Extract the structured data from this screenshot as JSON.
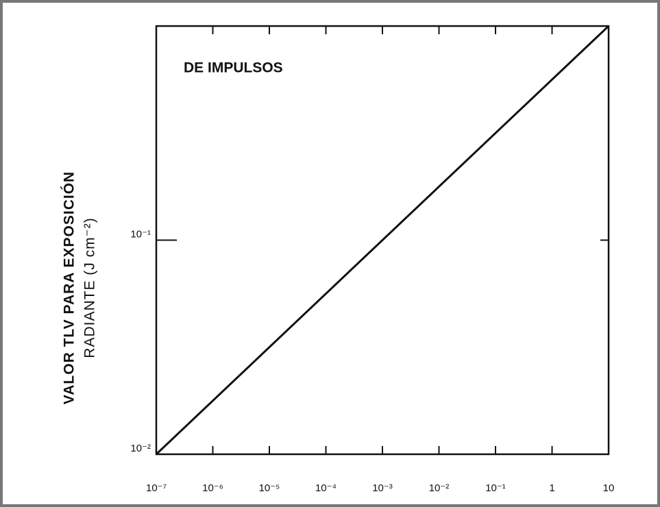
{
  "chart_data": {
    "type": "line",
    "log_x": true,
    "log_y": true,
    "annotation": "DE IMPULSOS",
    "ylabel": [
      "VALOR TLV PARA EXPOSICIÓN",
      "RADIANTE (J cm⁻²)"
    ],
    "x": [
      1e-07,
      10
    ],
    "series": [
      {
        "color": "#111111",
        "values": [
          0.01,
          1
        ]
      }
    ],
    "xlim": [
      1e-07,
      10
    ],
    "xticks": [
      {
        "value": 1e-07,
        "label": "10⁻⁷"
      },
      {
        "value": 1e-06,
        "label": "10⁻⁶"
      },
      {
        "value": 1e-05,
        "label": "10⁻⁵"
      },
      {
        "value": 0.0001,
        "label": "10⁻⁴"
      },
      {
        "value": 0.001,
        "label": "10⁻³"
      },
      {
        "value": 0.01,
        "label": "10⁻²"
      },
      {
        "value": 0.1,
        "label": "10⁻¹"
      },
      1,
      10
    ],
    "ylim": [
      0.01,
      1
    ],
    "yticks": [
      {
        "value": 0.01,
        "label": "10⁻²"
      },
      {
        "value": 0.1,
        "label": "10⁻¹"
      }
    ]
  }
}
